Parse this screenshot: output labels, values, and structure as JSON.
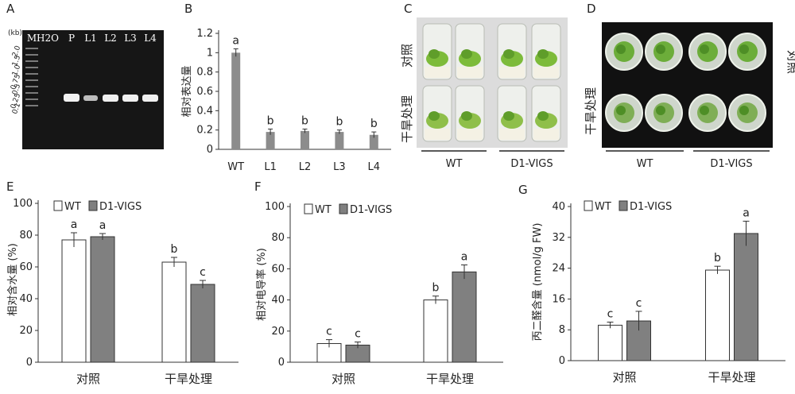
{
  "panels": {
    "A": {
      "label": "A",
      "unit": "(kb)",
      "lanes": [
        "M",
        "H2O",
        "P",
        "L1",
        "L2",
        "L3",
        "L4"
      ],
      "marker_sizes": [
        "2.0",
        "1.5",
        "1.0",
        "0.75",
        "0.5",
        "0.25",
        "0.1"
      ]
    },
    "C": {
      "label": "C",
      "rows": [
        "对照",
        "干旱处理"
      ],
      "groups": [
        "WT",
        "D1-VIGS"
      ]
    },
    "D": {
      "label": "D",
      "rows": [
        "对照",
        "干旱处理"
      ],
      "groups": [
        "WT",
        "D1-VIGS"
      ]
    },
    "B": {
      "label": "B"
    },
    "E": {
      "label": "E"
    },
    "F": {
      "label": "F"
    },
    "G": {
      "label": "G"
    }
  },
  "colors": {
    "wt": "#ffffff",
    "vigs": "#808080",
    "b_bar": "#8c8c8c",
    "gel": "#1a1a1a"
  },
  "chart_data": [
    {
      "id": "B",
      "type": "bar",
      "title": "",
      "xlabel": "",
      "ylabel": "相对表达量",
      "categories": [
        "WT",
        "L1",
        "L2",
        "L3",
        "L4"
      ],
      "values": [
        1.0,
        0.18,
        0.19,
        0.18,
        0.15
      ],
      "errors": [
        0.04,
        0.03,
        0.02,
        0.02,
        0.03
      ],
      "letters": [
        "a",
        "b",
        "b",
        "b",
        "b"
      ],
      "ylim": [
        0,
        1.2
      ],
      "yticks": [
        "0",
        "0.2",
        "0.4",
        "0.6",
        "0.8",
        "1",
        "1.2"
      ]
    },
    {
      "id": "E",
      "type": "bar",
      "title": "",
      "ylabel": "相对含水量 (%)",
      "categories": [
        "对照",
        "干旱处理"
      ],
      "series": [
        {
          "name": "WT",
          "values": [
            77,
            63
          ],
          "errors": [
            4.5,
            3
          ],
          "letters": [
            "a",
            "b"
          ]
        },
        {
          "name": "D1-VIGS",
          "values": [
            79,
            49
          ],
          "errors": [
            2,
            2.5
          ],
          "letters": [
            "a",
            "c"
          ]
        }
      ],
      "ylim": [
        0,
        100
      ],
      "yticks": [
        "0",
        "20",
        "40",
        "60",
        "80",
        "100"
      ],
      "legend": "top-left"
    },
    {
      "id": "F",
      "type": "bar",
      "title": "",
      "ylabel": "相对电导率 (%)",
      "categories": [
        "对照",
        "干旱处理"
      ],
      "series": [
        {
          "name": "WT",
          "values": [
            12,
            40
          ],
          "errors": [
            2.5,
            2.5
          ],
          "letters": [
            "c",
            "b"
          ]
        },
        {
          "name": "D1-VIGS",
          "values": [
            11,
            58
          ],
          "errors": [
            2,
            4.5
          ],
          "letters": [
            "c",
            "a"
          ]
        }
      ],
      "ylim": [
        0,
        100
      ],
      "yticks": [
        "0",
        "20",
        "40",
        "60",
        "80",
        "100"
      ],
      "legend": "top-left"
    },
    {
      "id": "G",
      "type": "bar",
      "title": "",
      "ylabel": "丙二醛含量 (nmol/g FW)",
      "categories": [
        "对照",
        "干旱处理"
      ],
      "series": [
        {
          "name": "WT",
          "values": [
            9.2,
            23.5
          ],
          "errors": [
            0.8,
            1
          ],
          "letters": [
            "c",
            "b"
          ]
        },
        {
          "name": "D1-VIGS",
          "values": [
            10.3,
            33.0
          ],
          "errors": [
            2.5,
            3.2
          ],
          "letters": [
            "c",
            "a"
          ]
        }
      ],
      "ylim": [
        0,
        40
      ],
      "yticks": [
        "0",
        "8",
        "16",
        "24",
        "32",
        "40"
      ],
      "legend": "top-left"
    }
  ]
}
